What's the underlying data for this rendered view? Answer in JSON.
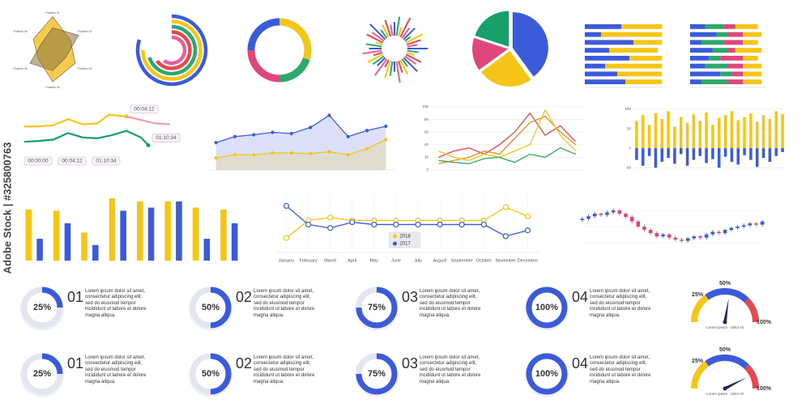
{
  "watermark": "Adobe Stock | #325800763",
  "chart_data": [
    {
      "type": "radar",
      "categories": [
        "Position 01",
        "Position 02",
        "Position 03",
        "Position 04",
        "Position 05",
        "Position 06"
      ],
      "rlim": [
        0,
        100
      ],
      "series": [
        {
          "color": "#f2c230",
          "values": [
            90,
            55,
            70,
            85,
            45,
            60
          ]
        },
        {
          "color": "#8a7440",
          "values": [
            60,
            80,
            40,
            55,
            70,
            35
          ]
        }
      ]
    },
    {
      "type": "radialbar",
      "lim": [
        0,
        100
      ],
      "values": [
        80,
        75,
        70,
        65,
        60
      ],
      "colors": [
        "#3b5bdb",
        "#f5c518",
        "#2ca86a",
        "#e5484d",
        "#e85d9a"
      ]
    },
    {
      "type": "donut",
      "values": [
        30,
        20,
        25,
        25
      ],
      "colors": [
        "#f5c518",
        "#2ca86a",
        "#e0457b",
        "#3b5bdb"
      ]
    },
    {
      "type": "burst",
      "lim": [
        0,
        100
      ],
      "values": [
        60,
        85,
        40,
        95,
        55,
        70,
        30,
        80,
        65,
        45,
        90,
        50,
        35,
        75,
        60,
        85,
        40,
        70,
        55,
        95,
        45,
        65,
        80,
        35,
        90,
        50,
        60,
        75,
        40,
        85,
        55,
        70,
        30,
        80,
        65,
        95,
        45,
        60,
        75,
        50
      ],
      "colors": [
        "#3b5bdb",
        "#2ca86a",
        "#f5c518",
        "#e5484d",
        "#e85d9a"
      ]
    },
    {
      "type": "pie",
      "values": [
        40,
        25,
        15,
        20
      ],
      "colors": [
        "#3b5bdb",
        "#f5c518",
        "#e0457b",
        "#16a06a"
      ]
    },
    {
      "type": "stackedbar",
      "categories": [
        null,
        null,
        null,
        null,
        null,
        null,
        null,
        null
      ],
      "xlim": [
        0,
        100
      ],
      "series": [
        {
          "color": "#3b5bdb",
          "values": [
            45,
            20,
            60,
            30,
            55,
            25,
            40,
            50
          ]
        },
        {
          "color": "#f5c518",
          "values": [
            50,
            75,
            35,
            60,
            40,
            70,
            55,
            45
          ]
        }
      ]
    },
    {
      "type": "stackedbar",
      "categories": [
        null,
        null,
        null,
        null,
        null,
        null,
        null,
        null
      ],
      "xlim": [
        0,
        100
      ],
      "series": [
        {
          "color": "#3b5bdb",
          "values": [
            20,
            35,
            15,
            30,
            25,
            20,
            40,
            15
          ]
        },
        {
          "color": "#2ca86a",
          "values": [
            25,
            15,
            30,
            20,
            15,
            30,
            15,
            35
          ]
        },
        {
          "color": "#e0457b",
          "values": [
            15,
            20,
            25,
            10,
            30,
            20,
            15,
            20
          ]
        },
        {
          "color": "#f5c518",
          "values": [
            30,
            25,
            20,
            35,
            20,
            25,
            25,
            25
          ]
        }
      ]
    },
    {
      "type": "line",
      "legend": "end-tags",
      "xlim": [
        0,
        10
      ],
      "ylim": [
        0,
        100
      ],
      "time_labels": [
        "00:00:00",
        "00:04:12",
        "01:10:34"
      ],
      "series": [
        {
          "name": "00:04:12",
          "color": "#f5c518",
          "x": [
            0,
            1,
            2,
            3,
            4,
            5,
            5.8,
            7
          ],
          "values": [
            55,
            55,
            58,
            72,
            60,
            62,
            82,
            78
          ]
        },
        {
          "color": "#f0a0a8",
          "x": [
            7,
            8,
            9,
            10
          ],
          "values": [
            78,
            70,
            62,
            60
          ]
        },
        {
          "name": "01:10:34",
          "color": "#16a06a",
          "x": [
            0,
            1,
            2,
            3,
            4,
            5,
            6,
            7,
            8,
            8.5
          ],
          "values": [
            20,
            22,
            25,
            40,
            30,
            28,
            35,
            45,
            30,
            12
          ]
        }
      ]
    },
    {
      "type": "area",
      "categories": [
        null,
        null,
        null,
        null,
        null,
        null,
        null,
        null,
        null,
        null
      ],
      "ylim": [
        0,
        100
      ],
      "series": [
        {
          "color": "#3b5bdb",
          "values": [
            45,
            55,
            58,
            62,
            60,
            70,
            90,
            55,
            65,
            72
          ]
        },
        {
          "color": "#f5c518",
          "values": [
            20,
            25,
            25,
            28,
            28,
            27,
            30,
            25,
            35,
            50
          ]
        }
      ]
    },
    {
      "type": "line",
      "categories": [
        null,
        null,
        null,
        null,
        null,
        null,
        null,
        null,
        null,
        null
      ],
      "ylim": [
        0,
        100
      ],
      "yticks": [
        0,
        20,
        40,
        60,
        80,
        100
      ],
      "series": [
        {
          "color": "#e5484d",
          "values": [
            20,
            30,
            35,
            25,
            40,
            60,
            90,
            55,
            70,
            45
          ]
        },
        {
          "color": "#f08a24",
          "values": [
            10,
            15,
            20,
            30,
            25,
            50,
            75,
            85,
            60,
            40
          ]
        },
        {
          "color": "#f5c518",
          "values": [
            30,
            20,
            15,
            25,
            20,
            30,
            40,
            95,
            55,
            30
          ]
        },
        {
          "color": "#2ca86a",
          "values": [
            15,
            12,
            10,
            18,
            20,
            12,
            25,
            20,
            35,
            25
          ]
        }
      ]
    },
    {
      "type": "bar",
      "barmode": "overlay",
      "categories": [
        null,
        null,
        null,
        null,
        null,
        null,
        null,
        null,
        null,
        null,
        null,
        null,
        null,
        null,
        null,
        null,
        null,
        null,
        null,
        null,
        null,
        null,
        null,
        null
      ],
      "ylim": [
        -60,
        100
      ],
      "yticks": [
        -50,
        0,
        50,
        100
      ],
      "series": [
        {
          "color": "#f5c518",
          "values": [
            70,
            85,
            60,
            90,
            75,
            95,
            55,
            80,
            65,
            88,
            70,
            92,
            60,
            78,
            85,
            95,
            72,
            80,
            90,
            68,
            85,
            75,
            95,
            88
          ]
        },
        {
          "color": "#3b5bdb",
          "values": [
            -30,
            -45,
            -20,
            -50,
            -35,
            -25,
            -40,
            -15,
            -45,
            -30,
            -20,
            -38,
            -28,
            -50,
            -22,
            -35,
            -42,
            -18,
            -30,
            -48,
            -25,
            -35,
            -20,
            -10
          ]
        }
      ]
    },
    {
      "type": "bar",
      "barmode": "group",
      "categories": [
        null,
        null,
        null,
        null,
        null,
        null,
        null,
        null
      ],
      "ylim": [
        0,
        100
      ],
      "series": [
        {
          "color": "#f5c518",
          "values": [
            82,
            80,
            45,
            100,
            95,
            95,
            85,
            82
          ]
        },
        {
          "color": "#3b5bdb",
          "values": [
            35,
            60,
            25,
            80,
            85,
            95,
            35,
            60
          ]
        }
      ]
    },
    {
      "type": "line",
      "legend": "center",
      "markers": true,
      "categories": [
        "January",
        "February",
        "March",
        "April",
        "May",
        "June",
        "July",
        "August",
        "September",
        "October",
        "November",
        "December"
      ],
      "ylim": [
        0,
        100
      ],
      "series": [
        {
          "name": "2018",
          "color": "#f5c518",
          "values": [
            25,
            55,
            60,
            55,
            55,
            55,
            55,
            55,
            55,
            55,
            78,
            62
          ]
        },
        {
          "name": "2017",
          "color": "#3b5bdb",
          "values": [
            80,
            48,
            42,
            52,
            48,
            48,
            48,
            48,
            48,
            48,
            28,
            38
          ]
        }
      ]
    },
    {
      "type": "candlestick",
      "ylim": [
        0,
        100
      ],
      "up_color": "#3b5bdb",
      "down_color": "#e0457b",
      "open": [
        60,
        62,
        66,
        70,
        68,
        72,
        75,
        70,
        65,
        58,
        50,
        45,
        40,
        35,
        38,
        33,
        30,
        28,
        32,
        35,
        33,
        38,
        42,
        40,
        45,
        48,
        50,
        52,
        55,
        53
      ],
      "close": [
        62,
        66,
        70,
        68,
        72,
        75,
        70,
        65,
        58,
        50,
        45,
        40,
        35,
        38,
        33,
        30,
        28,
        32,
        35,
        33,
        38,
        42,
        40,
        45,
        48,
        50,
        52,
        55,
        53,
        58
      ],
      "high": [
        65,
        69,
        73,
        72,
        75,
        78,
        77,
        72,
        68,
        61,
        53,
        48,
        43,
        40,
        40,
        36,
        33,
        34,
        37,
        37,
        40,
        45,
        44,
        47,
        50,
        53,
        55,
        57,
        57,
        60
      ],
      "low": [
        57,
        59,
        63,
        65,
        65,
        69,
        67,
        62,
        55,
        47,
        42,
        37,
        32,
        32,
        30,
        27,
        25,
        25,
        29,
        30,
        30,
        35,
        37,
        37,
        42,
        45,
        47,
        49,
        50,
        50
      ]
    },
    {
      "type": "progress",
      "lim": [
        0,
        100
      ],
      "color": "#3b5bdb",
      "track_color": "#e3e6ef",
      "values": [
        25,
        50,
        75,
        100,
        25,
        50,
        75,
        100
      ],
      "value_labels": [
        "25%",
        "50%",
        "75%",
        "100%",
        "25%",
        "50%",
        "75%",
        "100%"
      ],
      "numbers": [
        "01",
        "02",
        "03",
        "04",
        "01",
        "02",
        "03",
        "04"
      ],
      "texts": [
        "Lorem ipsum dolor sit amet, consectetur adipiscing elit, sed do eiusmod tempor incididunt ut labore et dolore magna aliqua.",
        "Lorem ipsum dolor sit amet, consectetur adipiscing elit, sed do eiusmod tempor incididunt ut labore et dolore magna aliqua.",
        "Lorem ipsum dolor sit amet, consectetur adipiscing elit, sed do eiusmod tempor incididunt ut labore et dolore magna aliqua.",
        "Lorem ipsum dolor sit amet, consectetur adipiscing elit, sed do eiusmod tempor incididunt ut labore et dolore magna aliqua.",
        "Lorem ipsum dolor sit amet, consectetur adipiscing elit, sed do eiusmod tempor incididunt ut labore et dolore magna aliqua.",
        "Lorem ipsum dolor sit amet, consectetur adipiscing elit, sed do eiusmod tempor incididunt ut labore et dolore magna aliqua.",
        "Lorem ipsum dolor sit amet, consectetur adipiscing elit, sed do eiusmod tempor incididunt ut labore et dolore magna aliqua.",
        "Lorem ipsum dolor sit amet, consectetur adipiscing elit, sed do eiusmod tempor incididunt ut labore et dolore magna aliqua."
      ]
    },
    {
      "type": "gauge",
      "ylim": [
        0,
        100
      ],
      "values": [
        55,
        85
      ],
      "caption": "Lorem ipsum - dolor sit",
      "ticks": [
        {
          "value": 25,
          "label": "25%"
        },
        {
          "value": 50,
          "label": "50%"
        },
        {
          "value": 100,
          "label": "100%"
        }
      ],
      "band_edges": [
        0,
        30,
        75,
        100
      ],
      "band_colors": [
        "#f5c518",
        "#3b5bdb",
        "#e5484d"
      ]
    }
  ]
}
